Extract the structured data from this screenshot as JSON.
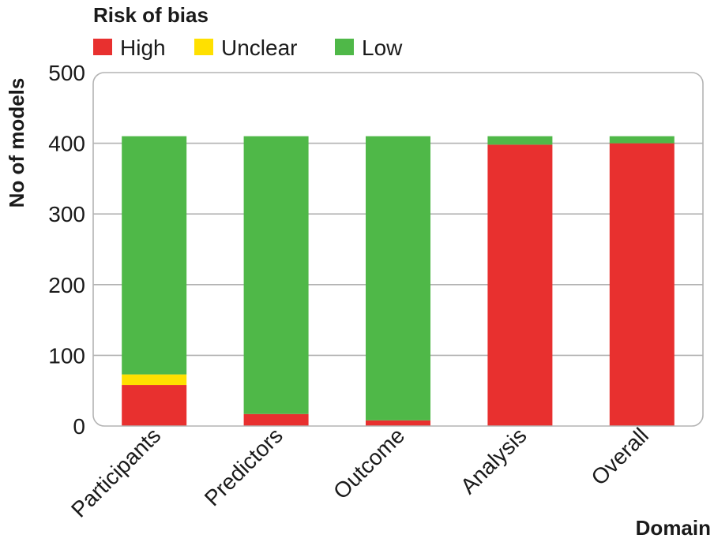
{
  "chart_data": {
    "type": "bar",
    "stacked": true,
    "title": "",
    "legend_title": "Risk of bias",
    "legend_position": "top-left",
    "xlabel": "Domain",
    "ylabel": "No of models",
    "ylim": [
      0,
      500
    ],
    "yticks": [
      0,
      100,
      200,
      300,
      400,
      500
    ],
    "grid": true,
    "categories": [
      "Participants",
      "Predictors",
      "Outcome",
      "Analysis",
      "Overall"
    ],
    "series": [
      {
        "name": "High",
        "color": "#e8302f",
        "values": [
          58,
          17,
          8,
          398,
          400
        ]
      },
      {
        "name": "Unclear",
        "color": "#ffe000",
        "values": [
          15,
          0,
          0,
          0,
          0
        ]
      },
      {
        "name": "Low",
        "color": "#4fb848",
        "values": [
          337,
          393,
          402,
          12,
          10
        ]
      }
    ],
    "legend_order": [
      "High",
      "Unclear",
      "Low"
    ]
  }
}
